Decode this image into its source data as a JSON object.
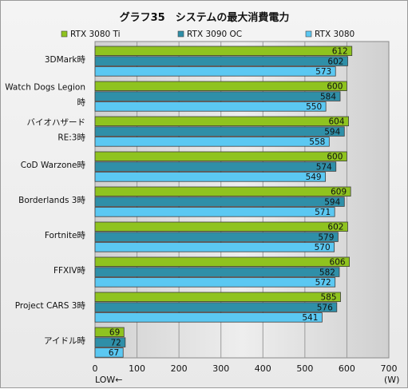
{
  "chart_data": {
    "type": "bar",
    "orientation": "horizontal",
    "title": "グラフ35　システムの最大消費電力",
    "categories": [
      [
        "3DMark時"
      ],
      [
        "Watch Dogs Legion",
        "時"
      ],
      [
        "バイオハザード",
        "RE:3時"
      ],
      [
        "CoD Warzone時"
      ],
      [
        "Borderlands 3時"
      ],
      [
        "Fortnite時"
      ],
      [
        "FFXIV時"
      ],
      [
        "Project CARS 3時"
      ],
      [
        "アイドル時"
      ]
    ],
    "series": [
      {
        "name": "RTX 3080 Ti",
        "color": "#8fc31f",
        "values": [
          612,
          600,
          604,
          600,
          609,
          602,
          606,
          585,
          69
        ]
      },
      {
        "name": "RTX 3090 OC",
        "color": "#2f8fa8",
        "values": [
          602,
          584,
          594,
          574,
          594,
          579,
          582,
          576,
          72
        ]
      },
      {
        "name": "RTX 3080",
        "color": "#5bc8f2",
        "values": [
          573,
          550,
          558,
          549,
          571,
          570,
          572,
          541,
          67
        ]
      }
    ],
    "xlim": [
      0,
      700
    ],
    "xticks": [
      "0",
      "100",
      "200",
      "300",
      "400",
      "500",
      "600",
      "700"
    ],
    "xunit": "(W)",
    "xnote": "LOW←",
    "legend_position": "top",
    "grid": true
  }
}
